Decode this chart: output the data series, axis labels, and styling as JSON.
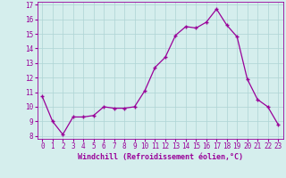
{
  "x": [
    0,
    1,
    2,
    3,
    4,
    5,
    6,
    7,
    8,
    9,
    10,
    11,
    12,
    13,
    14,
    15,
    16,
    17,
    18,
    19,
    20,
    21,
    22,
    23
  ],
  "y": [
    10.7,
    9.0,
    8.1,
    9.3,
    9.3,
    9.4,
    10.0,
    9.9,
    9.9,
    10.0,
    11.1,
    12.7,
    13.4,
    14.9,
    15.5,
    15.4,
    15.8,
    16.7,
    15.6,
    14.8,
    11.9,
    10.5,
    10.0,
    8.8
  ],
  "line_color": "#990099",
  "marker": "+",
  "marker_size": 3,
  "marker_linewidth": 1.0,
  "line_width": 0.9,
  "bg_color": "#d5eeed",
  "grid_color": "#aed4d4",
  "xlabel": "Windchill (Refroidissement éolien,°C)",
  "xlabel_fontsize": 6.0,
  "tick_fontsize": 5.5,
  "ytick_min": 8,
  "ytick_max": 17,
  "ytick_step": 1,
  "xtick_labels": [
    "0",
    "1",
    "2",
    "3",
    "4",
    "5",
    "6",
    "7",
    "8",
    "9",
    "10",
    "11",
    "12",
    "13",
    "14",
    "15",
    "16",
    "17",
    "18",
    "19",
    "20",
    "21",
    "22",
    "23"
  ]
}
